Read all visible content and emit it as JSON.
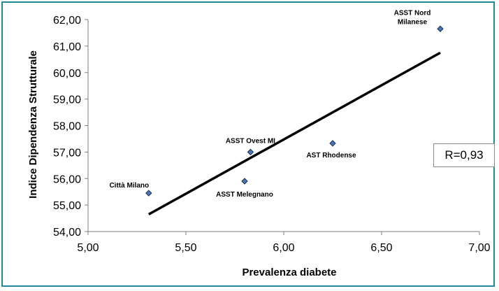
{
  "chart_data": {
    "type": "scatter",
    "xlabel": "Prevalenza diabete",
    "ylabel": "Indice Dipendenza Strutturale",
    "xlim": [
      5.0,
      7.0
    ],
    "ylim": [
      54.0,
      62.0
    ],
    "x_ticks": [
      "5,00",
      "5,50",
      "6,00",
      "6,50",
      "7,00"
    ],
    "y_ticks": [
      "54,00",
      "55,00",
      "56,00",
      "57,00",
      "58,00",
      "59,00",
      "60,00",
      "61,00",
      "62,00"
    ],
    "points": [
      {
        "label": "Città Milano",
        "x": 5.31,
        "y": 55.45
      },
      {
        "label": "ASST Melegnano",
        "x": 5.8,
        "y": 55.9
      },
      {
        "label": "ASST Ovest MI",
        "x": 5.83,
        "y": 57.0
      },
      {
        "label": "AST Rhodense",
        "x": 6.25,
        "y": 57.33
      },
      {
        "label": "ASST Nord Milanese",
        "label_lines": [
          "ASST Nord",
          "Milanese"
        ],
        "x": 6.8,
        "y": 61.65
      }
    ],
    "trendline": {
      "x": [
        5.31,
        6.8
      ],
      "y": [
        54.65,
        60.75
      ]
    },
    "annotation": "R=0,93",
    "marker_color": "#4a76b8",
    "grid": false
  }
}
